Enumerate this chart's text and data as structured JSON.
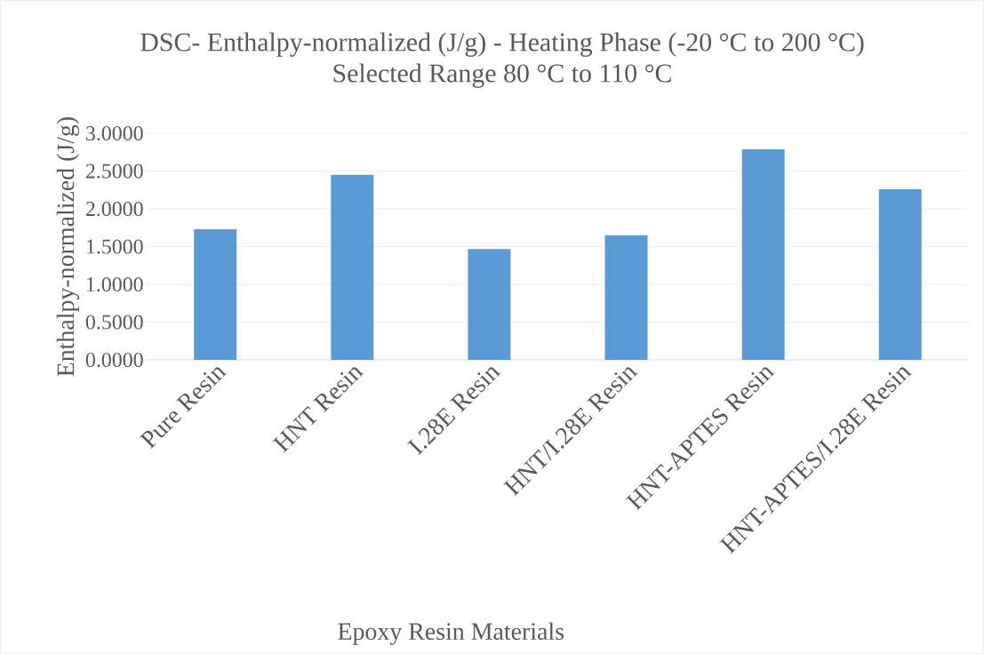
{
  "chart_data": {
    "type": "bar",
    "title": "DSC- Enthalpy-normalized (J/g) - Heating Phase (-20 °C to 200 °C)",
    "subtitle": "Selected Range 80 °C to 110 °C",
    "xlabel": "Epoxy Resin Materials",
    "ylabel": "Enthalpy-normalized (J/g)",
    "categories": [
      "Pure Resin",
      "HNT Resin",
      "I.28E Resin",
      "HNT/I.28E Resin",
      "HNT-APTES Resin",
      "HNT-APTES/I.28E Resin"
    ],
    "values": [
      1.73,
      2.45,
      1.47,
      1.65,
      2.79,
      2.26
    ],
    "color": "#5b9bd5",
    "ylim": [
      0,
      3
    ],
    "yticks": [
      {
        "value": 0,
        "label": "0.0000"
      },
      {
        "value": 0.5,
        "label": "0.5000"
      },
      {
        "value": 1,
        "label": "1.0000"
      },
      {
        "value": 1.5,
        "label": "1.5000"
      },
      {
        "value": 2,
        "label": "2.0000"
      },
      {
        "value": 2.5,
        "label": "2.5000"
      },
      {
        "value": 3,
        "label": "3.0000"
      }
    ],
    "grid": "y"
  }
}
